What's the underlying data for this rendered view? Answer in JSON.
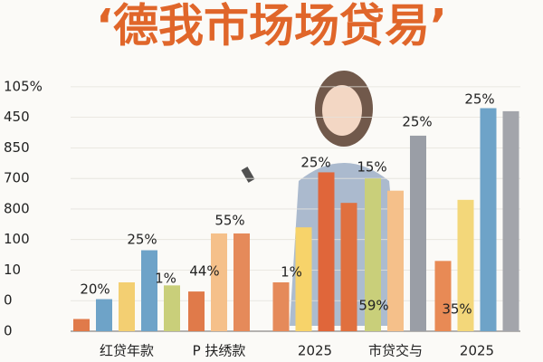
{
  "chart_data": {
    "type": "bar",
    "title": "‘德我市场场贷易’",
    "categories": [
      "红贷年款",
      "P 扶绣款",
      "2025",
      "市贷交与",
      "2025"
    ],
    "groups": [
      {
        "bars": [
          {
            "color": "#e07a4a",
            "value": 0.4
          },
          {
            "color": "#6ea3c8",
            "value": 1.05
          },
          {
            "color": "#f3cf72",
            "value": 1.6
          },
          {
            "color": "#6ea3c8",
            "value": 2.65
          },
          {
            "color": "#c9cf7a",
            "value": 1.5
          }
        ]
      },
      {
        "bars": [
          {
            "color": "#e07a4a",
            "value": 1.3
          },
          {
            "color": "#f5c08a",
            "value": 3.2
          },
          {
            "color": "#e58a5a",
            "value": 3.2
          }
        ]
      },
      {
        "bars": [
          {
            "color": "#e58a5a",
            "value": 1.6
          },
          {
            "color": "#f7d36a",
            "value": 3.4
          },
          {
            "color": "#e0663a",
            "value": 5.2
          },
          {
            "color": "#e0703e",
            "value": 4.2
          }
        ]
      },
      {
        "bars": [
          {
            "color": "#c9cf7a",
            "value": 5.0
          },
          {
            "color": "#f5c08a",
            "value": 4.6
          },
          {
            "color": "#9a9ea6",
            "value": 6.4
          }
        ]
      },
      {
        "bars": [
          {
            "color": "#e88a55",
            "value": 2.3
          },
          {
            "color": "#f3d77a",
            "value": 4.3
          },
          {
            "color": "#6ea3c8",
            "value": 7.3
          },
          {
            "color": "#a3a5ab",
            "value": 7.2
          }
        ]
      }
    ],
    "annotations": [
      "20%",
      "25%",
      "1%",
      "44%",
      "55%",
      "1%",
      "25%",
      "15%",
      "59%",
      "25%",
      "35%",
      "25%"
    ],
    "ylim": [
      0,
      8.5
    ],
    "yticks": [
      {
        "value": 0,
        "label": "0"
      },
      {
        "value": 1,
        "label": "0"
      },
      {
        "value": 2,
        "label": "10"
      },
      {
        "value": 3,
        "label": "100"
      },
      {
        "value": 4,
        "label": "800"
      },
      {
        "value": 5,
        "label": "700"
      },
      {
        "value": 6,
        "label": "850"
      },
      {
        "value": 7,
        "label": "450"
      },
      {
        "value": 8,
        "label": "105%"
      }
    ]
  }
}
